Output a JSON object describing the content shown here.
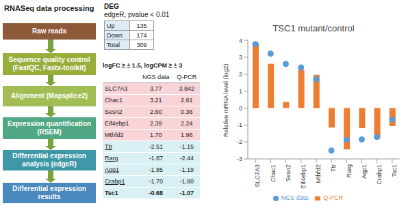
{
  "flowchart": {
    "title": "RNASeq data processing",
    "nodes": [
      {
        "label": "Raw reads"
      },
      {
        "label": "Sequence quality control (FastQC, Fastx-toolkit)"
      },
      {
        "label": "Alignment (Mapsplice2)"
      },
      {
        "label": "Expression quantification (RSEM)"
      },
      {
        "label": "Differential expression analysis (edgeR)"
      },
      {
        "label": "Differential expression results"
      }
    ]
  },
  "deg": {
    "title": "DEG",
    "subtitle": "edgeR, pvalue < 0.01",
    "rows": [
      [
        "Up",
        "135"
      ],
      [
        "Down",
        "174"
      ],
      [
        "Total",
        "309"
      ]
    ]
  },
  "comparison": {
    "title": "logFC ≥ ± 1.5, logCPM ≥ ± 3",
    "header": [
      "NGS data",
      "Q-PCR"
    ],
    "rows": [
      [
        "SLC7A3",
        "3.77",
        "3.842"
      ],
      [
        "Chac1",
        "3.21",
        "2.61"
      ],
      [
        "Sesn2",
        "2.60",
        "0.36"
      ],
      [
        "Eif4ebp1",
        "2.39",
        "2.24"
      ],
      [
        "Mthfd2",
        "1.70",
        "1.96"
      ],
      [
        "Ttr",
        "-2.51",
        "-1.15"
      ],
      [
        "Rarg",
        "-1.87",
        "-2.44"
      ],
      [
        "Aqp1",
        "-1.85",
        "-1.19"
      ],
      [
        "Crabp1",
        "-1.70",
        "-1.80"
      ],
      [
        "Tsc1",
        "-0.68",
        "-1.07"
      ]
    ]
  },
  "chart_data": {
    "type": "bar",
    "title": "TSC1 mutant/control",
    "y_label": "Relative mRNA level (log2)",
    "categories": [
      "SLC7A3",
      "Chac1",
      "Sesn2",
      "Eif4ebp1",
      "Mthfd2",
      "Ttr",
      "Rarg",
      "Aqp1",
      "Crabp1",
      "Tsc1"
    ],
    "series": [
      {
        "name": "Q-PCR",
        "type": "bar",
        "color": "#ED7D31",
        "values": [
          3.842,
          2.61,
          0.36,
          2.24,
          1.96,
          -1.15,
          -2.44,
          -1.19,
          -1.8,
          -1.07
        ]
      },
      {
        "name": "NGS data",
        "type": "scatter",
        "color": "#5B9BD5",
        "marker": "circle",
        "values": [
          3.77,
          3.21,
          2.6,
          2.39,
          1.7,
          -2.51,
          -1.87,
          -1.85,
          -1.7,
          -0.68
        ]
      }
    ],
    "ylim": [
      -3,
      4
    ],
    "yticks": [
      -3,
      -2,
      -1,
      0,
      1,
      2,
      3,
      4
    ],
    "grid": false,
    "legend": "bottom"
  }
}
